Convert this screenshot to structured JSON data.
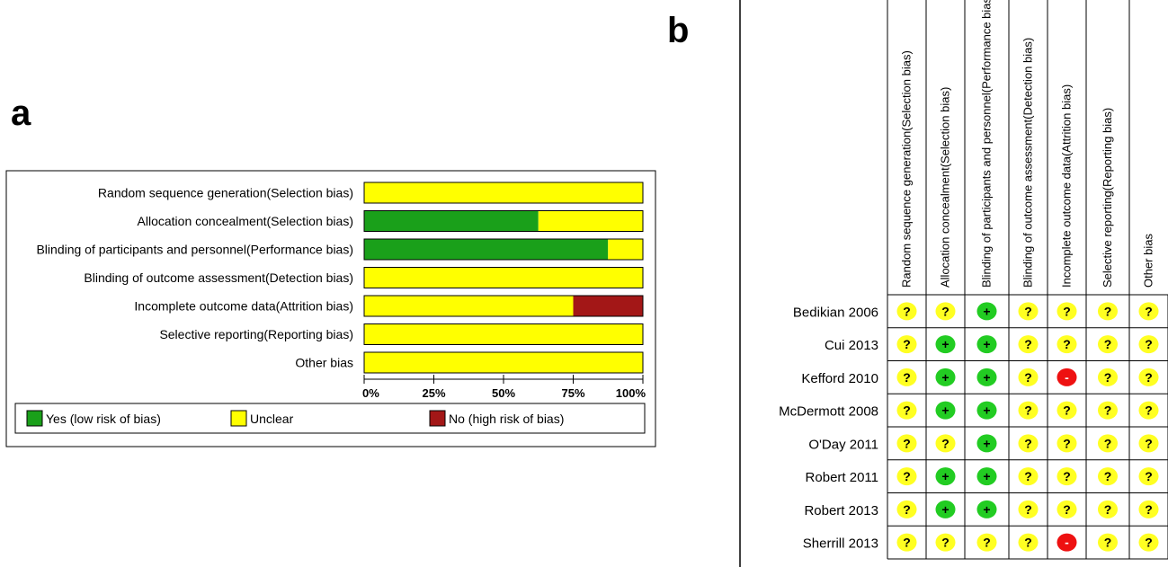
{
  "panels": {
    "a_letter": "a",
    "b_letter": "b"
  },
  "colors": {
    "yes": "#1aa01a",
    "unclear": "#ffff00",
    "no": "#a31717",
    "yes_circle": "#22cc22",
    "unclear_circle": "#ffff22",
    "no_circle": "#ee1111"
  },
  "chart_data": [
    {
      "type": "bar",
      "subtype": "stacked-horizontal-percent",
      "categories": [
        "Random sequence generation(Selection bias)",
        "Allocation concealment(Selection bias)",
        "Blinding of participants and personnel(Performance bias)",
        "Blinding of outcome assessment(Detection bias)",
        "Incomplete outcome data(Attrition bias)",
        "Selective reporting(Reporting bias)",
        "Other bias"
      ],
      "series": [
        {
          "name": "Yes (low risk of bias)",
          "color": "#1aa01a",
          "values": [
            0,
            62.5,
            87.5,
            0,
            0,
            0,
            0
          ]
        },
        {
          "name": "Unclear",
          "color": "#ffff00",
          "values": [
            100,
            37.5,
            12.5,
            100,
            75,
            100,
            100
          ]
        },
        {
          "name": "No (high risk of bias)",
          "color": "#a31717",
          "values": [
            0,
            0,
            0,
            0,
            25,
            0,
            0
          ]
        }
      ],
      "xticks": [
        "0%",
        "25%",
        "50%",
        "75%",
        "100%"
      ],
      "xlim": [
        0,
        100
      ],
      "legend_position": "bottom"
    },
    {
      "type": "table",
      "subtype": "risk-of-bias-summary",
      "columns": [
        "Random sequence generation(Selection bias)",
        "Allocation concealment(Selection bias)",
        "Blinding of participants and personnel(Performance bias)",
        "Blinding of outcome assessment(Detection bias)",
        "Incomplete outcome data(Attrition bias)",
        "Selective reporting(Reporting bias)",
        "Other bias"
      ],
      "rows": [
        {
          "study": "Bedikian  2006",
          "ratings": [
            "?",
            "?",
            "+",
            "?",
            "?",
            "?",
            "?"
          ]
        },
        {
          "study": "Cui  2013",
          "ratings": [
            "?",
            "+",
            "+",
            "?",
            "?",
            "?",
            "?"
          ]
        },
        {
          "study": "Kefford 2010",
          "ratings": [
            "?",
            "+",
            "+",
            "?",
            "-",
            "?",
            "?"
          ]
        },
        {
          "study": "McDermott  2008",
          "ratings": [
            "?",
            "+",
            "+",
            "?",
            "?",
            "?",
            "?"
          ]
        },
        {
          "study": "O'Day  2011",
          "ratings": [
            "?",
            "?",
            "+",
            "?",
            "?",
            "?",
            "?"
          ]
        },
        {
          "study": "Robert  2011",
          "ratings": [
            "?",
            "+",
            "+",
            "?",
            "?",
            "?",
            "?"
          ]
        },
        {
          "study": "Robert 2013",
          "ratings": [
            "?",
            "+",
            "+",
            "?",
            "?",
            "?",
            "?"
          ]
        },
        {
          "study": "Sherrill  2013",
          "ratings": [
            "?",
            "?",
            "?",
            "?",
            "-",
            "?",
            "?"
          ]
        }
      ]
    }
  ]
}
